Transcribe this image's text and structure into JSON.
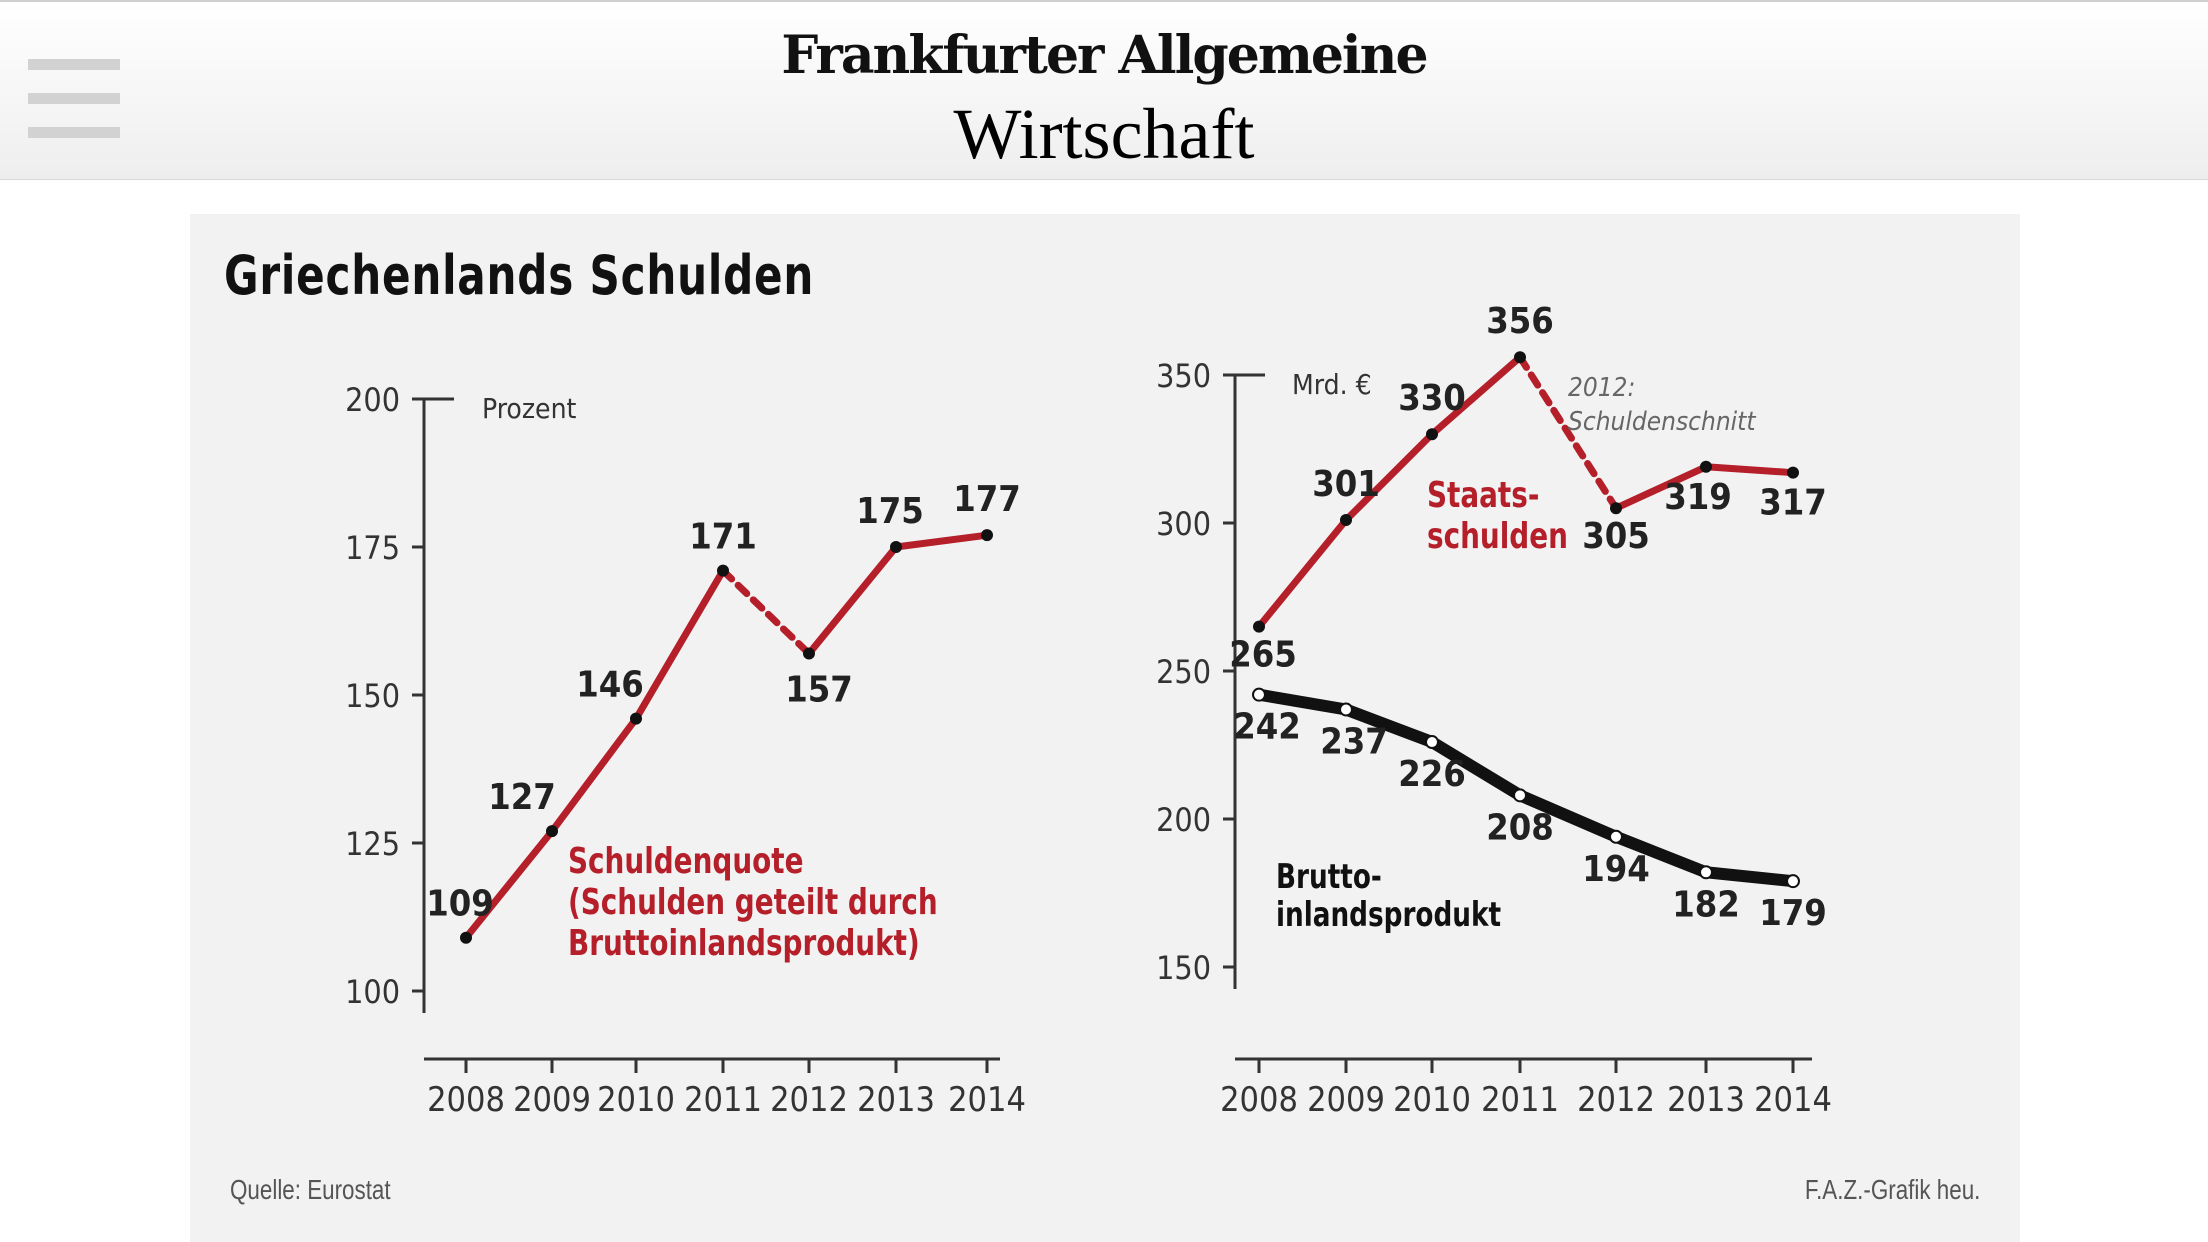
{
  "header": {
    "brand": "Frankfurter Allgemeine",
    "section": "Wirtschaft",
    "menu_icon": "hamburger-menu-icon"
  },
  "colors": {
    "red": "#b51f2a",
    "black": "#111111",
    "axis": "#333333",
    "card_bg": "#f2f2f2"
  },
  "figure": {
    "title": "Griechenlands Schulden",
    "source": "Quelle: Eurostat",
    "credit": "F.A.Z.-Grafik heu."
  },
  "chart_data": [
    {
      "type": "line",
      "title": "Schuldenquote (Schulden geteilt durch Bruttoinlandsprodukt)",
      "ylabel": "Prozent",
      "ylim": [
        100,
        200
      ],
      "yticks": [
        100,
        125,
        150,
        175,
        200
      ],
      "categories": [
        "2008",
        "2009",
        "2010",
        "2011",
        "2012",
        "2013",
        "2014"
      ],
      "series": [
        {
          "name": "Schuldenquote",
          "label_lines": [
            "Schuldenquote",
            "(Schulden geteilt durch",
            "Bruttoinlandsprodukt)"
          ],
          "color": "#b51f2a",
          "values": [
            109,
            127,
            146,
            171,
            157,
            175,
            177
          ],
          "dashed_segments": [
            3
          ]
        }
      ]
    },
    {
      "type": "line",
      "title": "",
      "ylabel": "Mrd. €",
      "ylim": [
        150,
        350
      ],
      "yticks": [
        150,
        200,
        250,
        300,
        350
      ],
      "categories": [
        "2008",
        "2009",
        "2010",
        "2011",
        "2012",
        "2013",
        "2014"
      ],
      "annotation": [
        "2012:",
        "Schuldenschnitt"
      ],
      "series": [
        {
          "name": "Staatsschulden",
          "label_lines": [
            "Staats-",
            "schulden"
          ],
          "color": "#b51f2a",
          "values": [
            265,
            301,
            330,
            356,
            305,
            319,
            317
          ],
          "dashed_segments": [
            3
          ]
        },
        {
          "name": "Bruttoinlandsprodukt",
          "label_lines": [
            "Brutto-",
            "inlandsprodukt"
          ],
          "color": "#111111",
          "values": [
            242,
            237,
            226,
            208,
            194,
            182,
            179
          ],
          "dashed_segments": []
        }
      ]
    }
  ]
}
